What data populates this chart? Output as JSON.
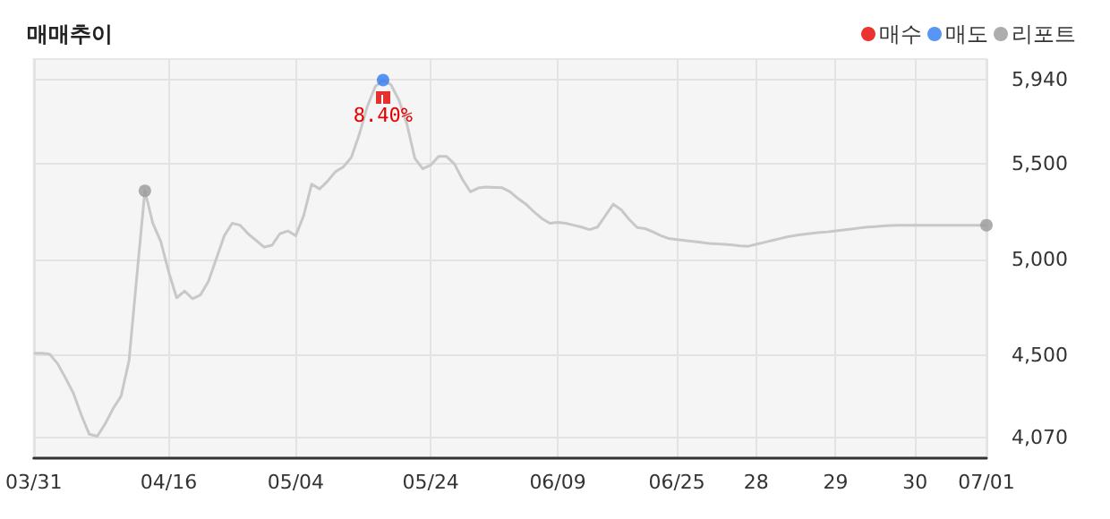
{
  "chart_data": {
    "type": "line",
    "title": "매매추이",
    "categories": [
      "03/31",
      null,
      null,
      null,
      null,
      null,
      null,
      null,
      null,
      null,
      null,
      null,
      null,
      null,
      null,
      null,
      null,
      "04/16",
      null,
      null,
      null,
      null,
      null,
      null,
      null,
      null,
      null,
      null,
      null,
      null,
      null,
      null,
      null,
      "05/04",
      null,
      null,
      null,
      null,
      null,
      null,
      null,
      null,
      null,
      null,
      null,
      null,
      null,
      null,
      null,
      null,
      "05/24",
      null,
      null,
      null,
      null,
      null,
      null,
      null,
      null,
      null,
      null,
      null,
      null,
      null,
      null,
      null,
      "06/09",
      null,
      null,
      null,
      null,
      null,
      null,
      null,
      null,
      null,
      null,
      null,
      null,
      null,
      null,
      "06/25",
      null,
      null,
      null,
      null,
      null,
      null,
      null,
      null,
      null,
      "28",
      null,
      null,
      null,
      null,
      null,
      null,
      null,
      null,
      null,
      "29",
      null,
      null,
      null,
      null,
      null,
      null,
      null,
      null,
      null,
      "30",
      null,
      null,
      null,
      null,
      null,
      null,
      null,
      null,
      "07/01"
    ],
    "series": [
      {
        "marker": "none",
        "color": "#c8c8c8",
        "values": [
          4510,
          4510,
          4505,
          4455,
          4380,
          4300,
          4185,
          4085,
          4075,
          4140,
          4220,
          4285,
          4470,
          4920,
          5360,
          5190,
          5095,
          4935,
          4800,
          4835,
          4795,
          4815,
          4885,
          5005,
          5125,
          5190,
          5180,
          5135,
          5100,
          5065,
          5075,
          5135,
          5150,
          5125,
          5230,
          5395,
          5370,
          5410,
          5460,
          5485,
          5535,
          5655,
          5800,
          5905,
          5940,
          5915,
          5835,
          5710,
          5530,
          5475,
          5495,
          5540,
          5540,
          5500,
          5420,
          5355,
          5375,
          5380,
          5378,
          5376,
          5355,
          5320,
          5290,
          5250,
          5215,
          5190,
          5195,
          5190,
          5180,
          5170,
          5157,
          5170,
          5230,
          5290,
          5260,
          5210,
          5168,
          5162,
          5145,
          5125,
          5110,
          5105,
          5100,
          5095,
          5090,
          5085,
          5082,
          5080,
          5076,
          5072,
          5070,
          5080,
          5090,
          5100,
          5110,
          5120,
          5127,
          5133,
          5137,
          5142,
          5145,
          5150,
          5155,
          5160,
          5165,
          5170,
          5173,
          5176,
          5178,
          5180,
          5180,
          5180,
          5180,
          5180,
          5180,
          5180,
          5180,
          5180,
          5180,
          5180,
          5180
        ]
      },
      {
        "type": "scatter",
        "marker": "circle",
        "name": "매수",
        "color": "#e60000",
        "values": [
          null,
          null,
          null,
          null,
          null,
          null,
          null,
          null,
          null,
          null,
          null,
          null,
          null,
          null,
          null,
          null,
          null,
          null,
          null,
          null,
          null,
          null,
          null,
          null,
          null,
          null,
          null,
          null,
          null,
          null,
          null,
          null,
          null,
          null,
          null,
          null,
          null,
          null,
          null,
          null,
          null,
          null,
          null,
          null,
          null,
          null,
          null,
          null,
          null,
          null,
          null,
          null,
          null,
          null,
          null,
          null,
          null,
          null,
          null,
          null,
          null,
          null,
          null,
          null,
          null,
          null,
          null,
          null,
          null,
          null,
          null,
          null,
          null,
          null,
          null,
          null,
          null,
          null,
          null,
          null,
          null,
          null,
          null,
          null,
          null,
          null,
          null,
          null,
          null,
          null,
          null,
          null,
          null,
          null,
          null,
          null,
          null,
          null,
          null,
          null,
          null,
          null,
          null,
          null,
          null,
          null,
          null,
          null,
          null,
          null,
          null,
          null,
          null,
          null,
          null,
          null,
          null,
          null,
          null,
          null,
          null
        ]
      },
      {
        "type": "scatter",
        "marker": "circle",
        "name": "매도",
        "color": "#2f7bf2",
        "values": [
          null,
          null,
          null,
          null,
          null,
          null,
          null,
          null,
          null,
          null,
          null,
          null,
          null,
          null,
          null,
          null,
          null,
          null,
          null,
          null,
          null,
          null,
          null,
          null,
          null,
          null,
          null,
          null,
          null,
          null,
          null,
          null,
          null,
          null,
          null,
          null,
          null,
          null,
          null,
          null,
          null,
          null,
          null,
          null,
          5940,
          null,
          null,
          null,
          null,
          null,
          null,
          null,
          null,
          null,
          null,
          null,
          null,
          null,
          null,
          null,
          null,
          null,
          null,
          null,
          null,
          null,
          null,
          null,
          null,
          null,
          null,
          null,
          null,
          null,
          null,
          null,
          null,
          null,
          null,
          null,
          null,
          null,
          null,
          null,
          null,
          null,
          null,
          null,
          null,
          null,
          null,
          null,
          null,
          null,
          null,
          null,
          null,
          null,
          null,
          null,
          null,
          null,
          null,
          null,
          null,
          null,
          null,
          null,
          null,
          null,
          null,
          null,
          null,
          null,
          null,
          null,
          null,
          null,
          null,
          null,
          null
        ]
      },
      {
        "type": "scatter",
        "marker": "circle",
        "name": "리포트",
        "color": "#999999",
        "values": [
          null,
          null,
          null,
          null,
          null,
          null,
          null,
          null,
          null,
          null,
          null,
          null,
          null,
          null,
          5360,
          null,
          null,
          null,
          null,
          null,
          null,
          null,
          null,
          null,
          null,
          null,
          null,
          null,
          null,
          null,
          null,
          null,
          null,
          null,
          null,
          null,
          null,
          null,
          null,
          null,
          null,
          null,
          null,
          null,
          null,
          null,
          null,
          null,
          null,
          null,
          null,
          null,
          null,
          null,
          null,
          null,
          null,
          null,
          null,
          null,
          null,
          null,
          null,
          null,
          null,
          null,
          null,
          null,
          null,
          null,
          null,
          null,
          null,
          null,
          null,
          null,
          null,
          null,
          null,
          null,
          null,
          null,
          null,
          null,
          null,
          null,
          null,
          null,
          null,
          null,
          null,
          null,
          null,
          null,
          null,
          null,
          null,
          null,
          null,
          null,
          null,
          null,
          null,
          null,
          null,
          null,
          null,
          null,
          null,
          null,
          null,
          null,
          null,
          null,
          null,
          null,
          null,
          null,
          null,
          null,
          5180
        ]
      }
    ],
    "ylim": [
      3960,
      6050
    ],
    "yticks": [
      {
        "value": 4070,
        "label": "4,070"
      },
      {
        "value": 4500,
        "label": "4,500"
      },
      {
        "value": 5000,
        "label": "5,000"
      },
      {
        "value": 5500,
        "label": "5,500"
      },
      {
        "value": 5940,
        "label": "5,940"
      }
    ],
    "annotations": [
      "8.40%"
    ],
    "grid": true,
    "legend": "top right"
  }
}
